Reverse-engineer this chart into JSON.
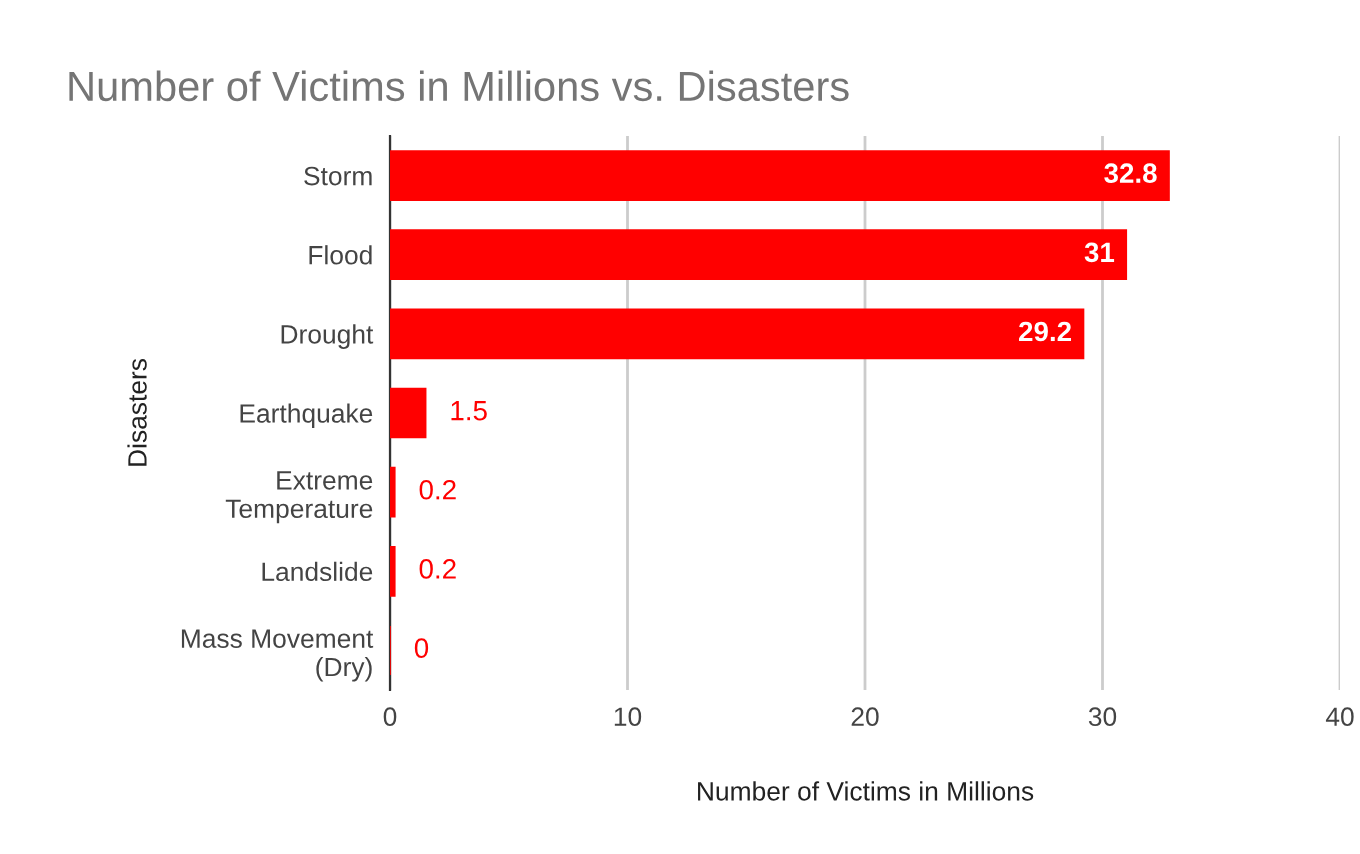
{
  "chart_data": {
    "type": "bar",
    "orientation": "horizontal",
    "title": "Number of Victims in Millions vs. Disasters",
    "xlabel": "Number of Victims in Millions",
    "ylabel": "Disasters",
    "categories": [
      "Storm",
      "Flood",
      "Drought",
      "Earthquake",
      "Extreme\nTemperature",
      "Landslide",
      "Mass Movement\n(Dry)"
    ],
    "values": [
      32.8,
      31,
      29.2,
      1.5,
      0.2,
      0.2,
      0
    ],
    "color": "#ff0000",
    "xlim": [
      0,
      40
    ],
    "xticks": [
      0,
      10,
      20,
      30,
      40
    ],
    "grid": "x",
    "data_labels": true,
    "legend": false
  }
}
